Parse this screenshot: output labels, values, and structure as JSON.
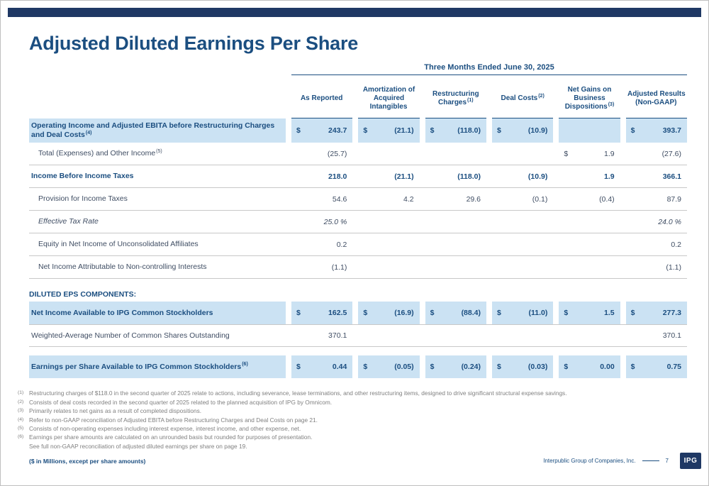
{
  "slide": {
    "title": "Adjusted Diluted Earnings Per Share",
    "logo_text": "IPG"
  },
  "table": {
    "period": "Three Months Ended June 30, 2025",
    "section_header": "DILUTED EPS COMPONENTS:",
    "columns": [
      {
        "label": "As Reported",
        "sup": ""
      },
      {
        "label": "Amortization of Acquired Intangibles",
        "sup": ""
      },
      {
        "label": "Restructuring Charges",
        "sup": "(1)"
      },
      {
        "label": "Deal Costs",
        "sup": "(2)"
      },
      {
        "label": "Net Gains on Business Dispositions",
        "sup": "(3)"
      },
      {
        "label": "Adjusted Results (Non-GAAP)",
        "sup": ""
      }
    ],
    "rows": [
      {
        "label": "Operating Income and Adjusted EBITA before Restructuring Charges and Deal Costs",
        "sup": "(4)",
        "cells": [
          {
            "d": "$",
            "v": "243.7"
          },
          {
            "d": "$",
            "v": "(21.1)"
          },
          {
            "d": "$",
            "v": "(118.0)"
          },
          {
            "d": "$",
            "v": "(10.9)"
          },
          {
            "d": "",
            "v": ""
          },
          {
            "d": "$",
            "v": "393.7"
          }
        ]
      },
      {
        "label": "Total (Expenses) and Other Income",
        "sup": "(5)",
        "cells": [
          {
            "d": "",
            "v": "(25.7)"
          },
          {
            "d": "",
            "v": ""
          },
          {
            "d": "",
            "v": ""
          },
          {
            "d": "",
            "v": ""
          },
          {
            "d": "$",
            "v": "1.9"
          },
          {
            "d": "",
            "v": "(27.6)"
          }
        ]
      },
      {
        "label": "Income Before Income Taxes",
        "sup": "",
        "cells": [
          {
            "d": "",
            "v": "218.0"
          },
          {
            "d": "",
            "v": "(21.1)"
          },
          {
            "d": "",
            "v": "(118.0)"
          },
          {
            "d": "",
            "v": "(10.9)"
          },
          {
            "d": "",
            "v": "1.9"
          },
          {
            "d": "",
            "v": "366.1"
          }
        ]
      },
      {
        "label": "Provision for Income Taxes",
        "sup": "",
        "cells": [
          {
            "d": "",
            "v": "54.6"
          },
          {
            "d": "",
            "v": "4.2"
          },
          {
            "d": "",
            "v": "29.6"
          },
          {
            "d": "",
            "v": "(0.1)"
          },
          {
            "d": "",
            "v": "(0.4)"
          },
          {
            "d": "",
            "v": "87.9"
          }
        ]
      },
      {
        "label": "Effective Tax Rate",
        "sup": "",
        "cells": [
          {
            "d": "",
            "v": "25.0 %"
          },
          {
            "d": "",
            "v": ""
          },
          {
            "d": "",
            "v": ""
          },
          {
            "d": "",
            "v": ""
          },
          {
            "d": "",
            "v": ""
          },
          {
            "d": "",
            "v": "24.0 %"
          }
        ]
      },
      {
        "label": "Equity in Net Income of Unconsolidated Affiliates",
        "sup": "",
        "cells": [
          {
            "d": "",
            "v": "0.2"
          },
          {
            "d": "",
            "v": ""
          },
          {
            "d": "",
            "v": ""
          },
          {
            "d": "",
            "v": ""
          },
          {
            "d": "",
            "v": ""
          },
          {
            "d": "",
            "v": "0.2"
          }
        ]
      },
      {
        "label": "Net Income Attributable to Non-controlling Interests",
        "sup": "",
        "cells": [
          {
            "d": "",
            "v": "(1.1)"
          },
          {
            "d": "",
            "v": ""
          },
          {
            "d": "",
            "v": ""
          },
          {
            "d": "",
            "v": ""
          },
          {
            "d": "",
            "v": ""
          },
          {
            "d": "",
            "v": "(1.1)"
          }
        ]
      },
      {
        "label": "Net Income Available to IPG Common Stockholders",
        "sup": "",
        "cells": [
          {
            "d": "$",
            "v": "162.5"
          },
          {
            "d": "$",
            "v": "(16.9)"
          },
          {
            "d": "$",
            "v": "(88.4)"
          },
          {
            "d": "$",
            "v": "(11.0)"
          },
          {
            "d": "$",
            "v": "1.5"
          },
          {
            "d": "$",
            "v": "277.3"
          }
        ]
      },
      {
        "label": "Weighted-Average Number of Common Shares Outstanding",
        "sup": "",
        "cells": [
          {
            "d": "",
            "v": "370.1"
          },
          {
            "d": "",
            "v": ""
          },
          {
            "d": "",
            "v": ""
          },
          {
            "d": "",
            "v": ""
          },
          {
            "d": "",
            "v": ""
          },
          {
            "d": "",
            "v": "370.1"
          }
        ]
      },
      {
        "label": "Earnings per Share Available to IPG Common Stockholders",
        "sup": "(6)",
        "cells": [
          {
            "d": "$",
            "v": "0.44"
          },
          {
            "d": "$",
            "v": "(0.05)"
          },
          {
            "d": "$",
            "v": "(0.24)"
          },
          {
            "d": "$",
            "v": "(0.03)"
          },
          {
            "d": "$",
            "v": "0.00"
          },
          {
            "d": "$",
            "v": "0.75"
          }
        ]
      }
    ]
  },
  "footnotes": [
    {
      "sup": "(1)",
      "text": "Restructuring charges of $118.0 in the second quarter of 2025 relate to actions, including severance, lease terminations, and other restructuring items, designed to drive significant structural expense savings."
    },
    {
      "sup": "(2)",
      "text": "Consists of deal costs recorded in the second quarter of 2025 related to the planned acquisition of IPG by Omnicom."
    },
    {
      "sup": "(3)",
      "text": "Primarily relates to net gains as a result of completed dispositions."
    },
    {
      "sup": "(4)",
      "text": "Refer to non-GAAP reconciliation of Adjusted EBITA before Restructuring Charges and Deal Costs on page 21."
    },
    {
      "sup": "(5)",
      "text": "Consists of non-operating expenses including interest expense, interest income, and other expense, net."
    },
    {
      "sup": "(6)",
      "text": "Earnings per share amounts are calculated on an unrounded basis but rounded for purposes of presentation."
    },
    {
      "sup": "",
      "text": "See full non-GAAP reconciliation of adjusted diluted earnings per share on page 19."
    }
  ],
  "footer": {
    "left": "($ in Millions, except per share amounts)",
    "company": "Interpublic Group of Companies, Inc.",
    "page": "7"
  },
  "colors": {
    "navy": "#1f3864",
    "blue": "#1b4e80",
    "highlight": "#cbe2f3"
  }
}
